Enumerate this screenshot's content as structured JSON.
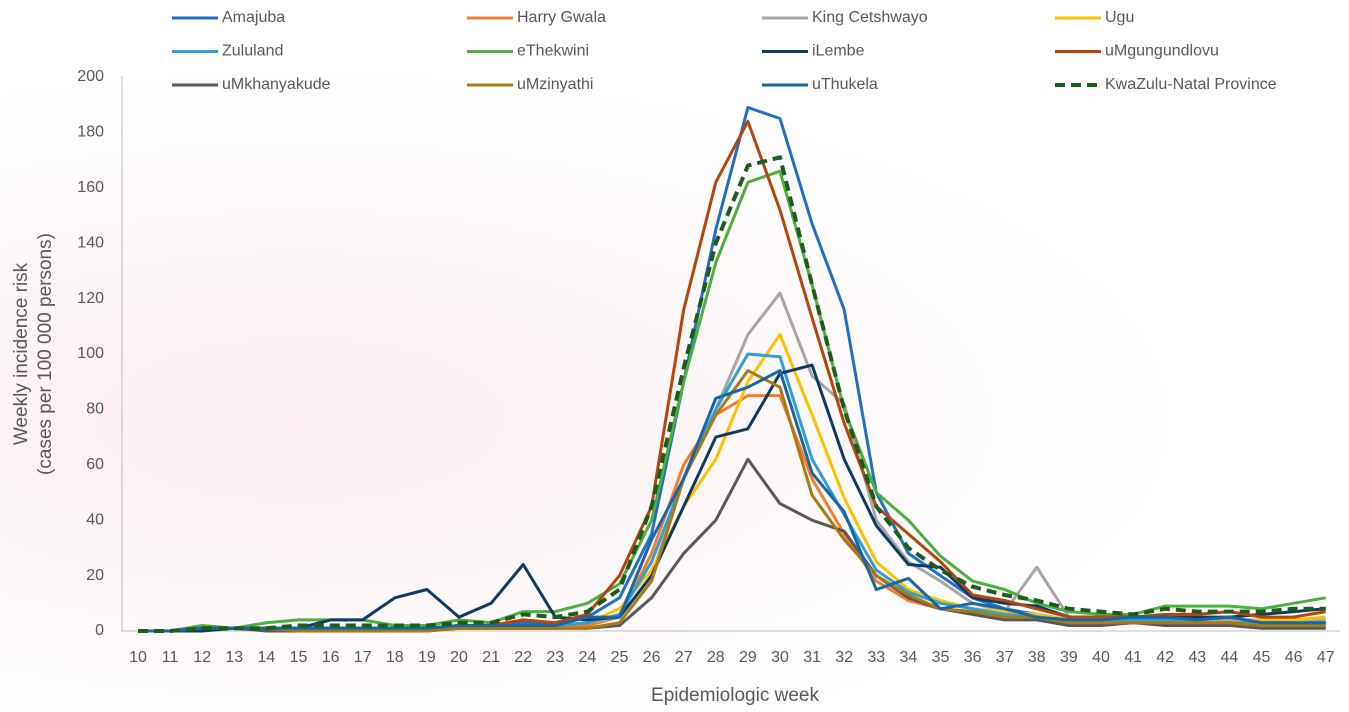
{
  "chart_data": {
    "type": "line",
    "x_label": "Epidemiologic week",
    "y_label": [
      "Weekly incidence risk",
      "(cases per 100 000 persons)"
    ],
    "categories": [
      "10",
      "11",
      "12",
      "13",
      "14",
      "15",
      "16",
      "17",
      "18",
      "19",
      "20",
      "21",
      "22",
      "23",
      "24",
      "25",
      "26",
      "27",
      "28",
      "29",
      "30",
      "31",
      "32",
      "33",
      "34",
      "35",
      "36",
      "37",
      "38",
      "39",
      "40",
      "41",
      "42",
      "43",
      "44",
      "45",
      "46",
      "47"
    ],
    "ylim": [
      0,
      200
    ],
    "yticks": [
      0,
      20,
      40,
      60,
      80,
      100,
      120,
      140,
      160,
      180,
      200
    ],
    "grid": false,
    "series": [
      {
        "name": "Amajuba",
        "color": "#1f6fc5",
        "linestyle": "solid",
        "values": [
          0,
          0,
          1,
          1,
          1,
          1,
          1,
          1,
          1,
          1,
          2,
          2,
          3,
          3,
          5,
          12,
          35,
          90,
          145,
          189,
          185,
          147,
          116,
          50,
          28,
          20,
          12,
          8,
          6,
          4,
          4,
          4,
          4,
          3,
          3,
          3,
          3,
          3
        ]
      },
      {
        "name": "Harry Gwala",
        "color": "#f47c30",
        "linestyle": "solid",
        "values": [
          0,
          0,
          1,
          1,
          1,
          1,
          1,
          1,
          1,
          1,
          1,
          1,
          1,
          1,
          2,
          5,
          28,
          60,
          78,
          85,
          85,
          55,
          35,
          18,
          11,
          8,
          7,
          5,
          5,
          3,
          3,
          3,
          4,
          3,
          3,
          2,
          2,
          2
        ]
      },
      {
        "name": "King Cetshwayo",
        "color": "#a6a6a6",
        "linestyle": "solid",
        "values": [
          0,
          0,
          1,
          1,
          1,
          1,
          1,
          1,
          1,
          1,
          2,
          2,
          2,
          2,
          3,
          5,
          20,
          55,
          80,
          107,
          122,
          92,
          82,
          40,
          25,
          18,
          10,
          7,
          23,
          5,
          4,
          4,
          4,
          4,
          4,
          4,
          4,
          4
        ]
      },
      {
        "name": "Ugu",
        "color": "#ffc000",
        "linestyle": "solid",
        "values": [
          0,
          0,
          1,
          1,
          1,
          1,
          1,
          1,
          1,
          1,
          1,
          1,
          2,
          2,
          3,
          8,
          22,
          45,
          62,
          90,
          107,
          78,
          48,
          25,
          15,
          11,
          8,
          7,
          6,
          4,
          3,
          3,
          3,
          3,
          3,
          4,
          4,
          5
        ]
      },
      {
        "name": "Zululand",
        "color": "#2e9fd8",
        "linestyle": "solid",
        "values": [
          0,
          0,
          1,
          1,
          1,
          1,
          1,
          1,
          1,
          1,
          2,
          2,
          2,
          2,
          3,
          6,
          25,
          55,
          80,
          100,
          99,
          62,
          42,
          22,
          14,
          10,
          8,
          6,
          5,
          4,
          4,
          4,
          4,
          3,
          3,
          3,
          3,
          3
        ]
      },
      {
        "name": "eThekwini",
        "color": "#4caf40",
        "linestyle": "solid",
        "values": [
          0,
          0,
          2,
          1,
          3,
          4,
          4,
          4,
          2,
          2,
          4,
          3,
          7,
          7,
          10,
          17,
          40,
          90,
          133,
          162,
          166,
          125,
          80,
          50,
          40,
          27,
          18,
          15,
          10,
          7,
          6,
          6,
          9,
          9,
          9,
          8,
          10,
          12
        ]
      },
      {
        "name": "iLembe",
        "color": "#0f3a66",
        "linestyle": "solid",
        "values": [
          0,
          0,
          0,
          1,
          1,
          1,
          4,
          4,
          12,
          15,
          5,
          10,
          24,
          5,
          4,
          5,
          20,
          45,
          70,
          73,
          93,
          96,
          62,
          38,
          24,
          23,
          12,
          10,
          9,
          5,
          5,
          5,
          5,
          5,
          5,
          6,
          7,
          8
        ]
      },
      {
        "name": "uMgungundlovu",
        "color": "#b5450b",
        "linestyle": "solid",
        "values": [
          0,
          0,
          1,
          1,
          1,
          1,
          1,
          1,
          1,
          1,
          2,
          2,
          4,
          3,
          6,
          20,
          45,
          116,
          162,
          184,
          152,
          113,
          75,
          45,
          35,
          25,
          13,
          11,
          8,
          5,
          5,
          5,
          6,
          6,
          7,
          5,
          5,
          7
        ]
      },
      {
        "name": "uMkhanyakude",
        "color": "#595959",
        "linestyle": "solid",
        "values": [
          0,
          0,
          1,
          1,
          0,
          0,
          0,
          0,
          0,
          0,
          1,
          1,
          1,
          1,
          1,
          2,
          12,
          28,
          40,
          62,
          46,
          40,
          36,
          20,
          12,
          8,
          6,
          4,
          4,
          2,
          2,
          3,
          2,
          2,
          2,
          1,
          1,
          1
        ]
      },
      {
        "name": "uMzinyathi",
        "color": "#a97a14",
        "linestyle": "solid",
        "values": [
          0,
          0,
          1,
          1,
          1,
          0,
          0,
          0,
          0,
          0,
          1,
          1,
          1,
          1,
          1,
          3,
          18,
          55,
          78,
          94,
          88,
          49,
          33,
          20,
          13,
          8,
          7,
          5,
          5,
          3,
          3,
          3,
          3,
          3,
          3,
          2,
          2,
          2
        ]
      },
      {
        "name": "uThukela",
        "color": "#1767a6",
        "linestyle": "solid",
        "values": [
          0,
          0,
          1,
          1,
          1,
          1,
          1,
          1,
          1,
          1,
          2,
          2,
          2,
          2,
          5,
          5,
          33,
          55,
          84,
          88,
          94,
          57,
          43,
          15,
          19,
          8,
          10,
          8,
          5,
          4,
          4,
          5,
          5,
          4,
          5,
          3,
          3,
          3
        ]
      },
      {
        "name": "KwaZulu-Natal Province",
        "color": "#1e5c1e",
        "linestyle": "dashed",
        "values": [
          0,
          0,
          1,
          1,
          1,
          2,
          2,
          2,
          2,
          2,
          3,
          3,
          6,
          5,
          7,
          15,
          45,
          95,
          140,
          168,
          171,
          125,
          80,
          45,
          30,
          22,
          16,
          13,
          11,
          8,
          7,
          6,
          8,
          7,
          7,
          7,
          8,
          8
        ]
      }
    ]
  }
}
